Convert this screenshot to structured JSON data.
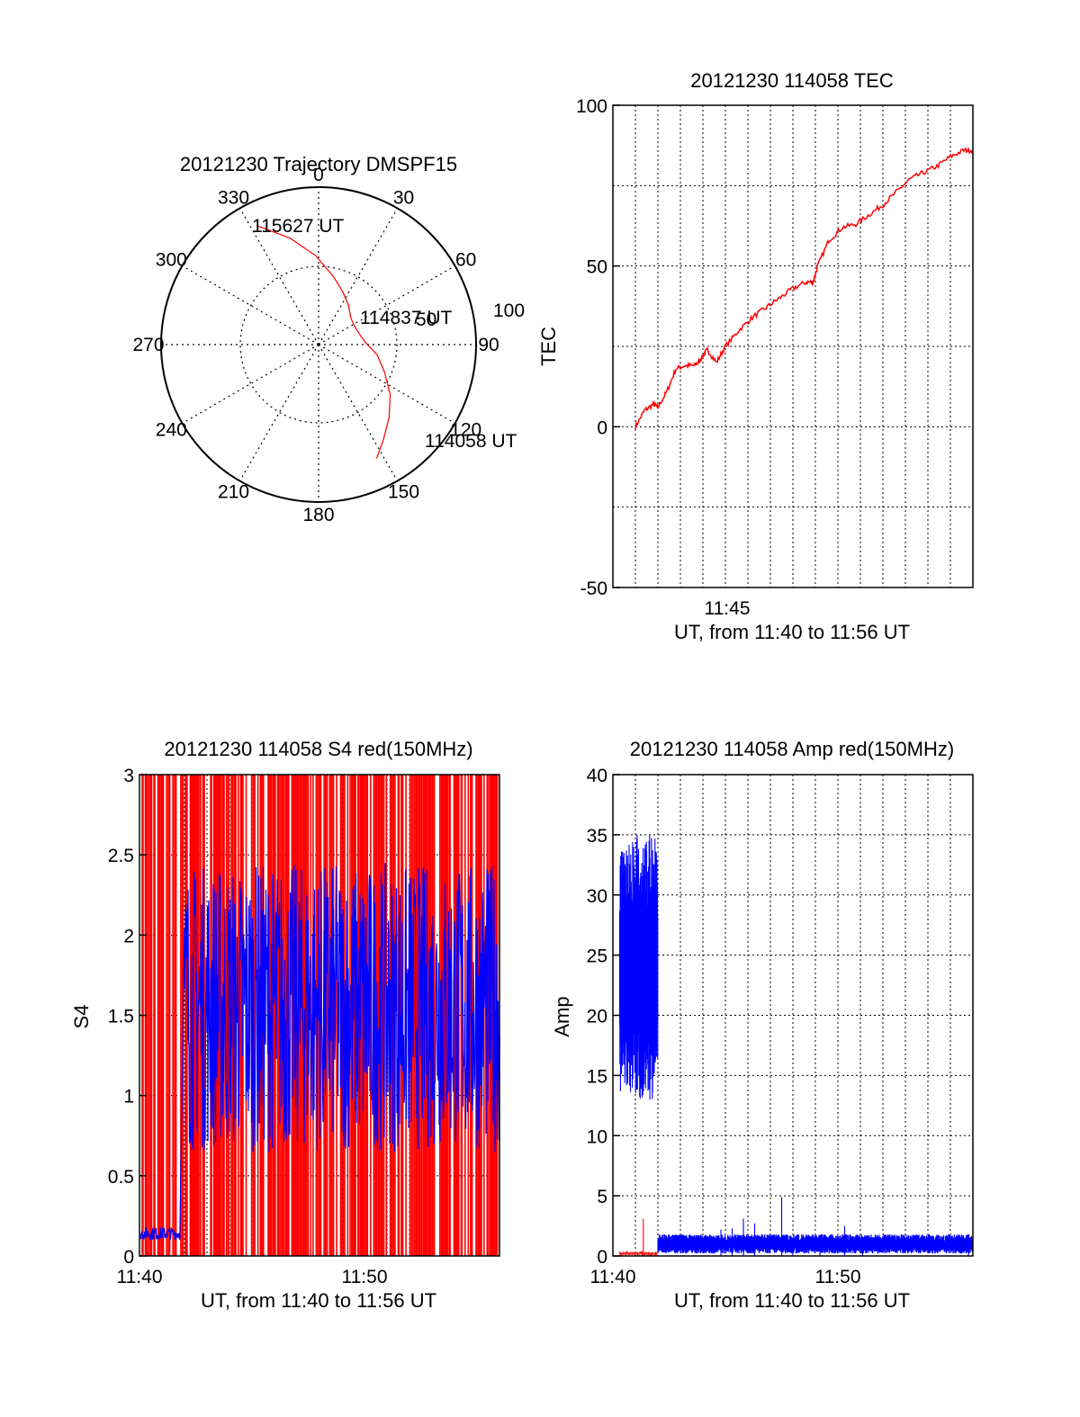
{
  "chart_data": [
    {
      "id": "trajectory",
      "type": "scatter",
      "title": "20121230 Trajectory DMSPF15",
      "azimuth_labels": [
        "0",
        "30",
        "60",
        "90",
        "120",
        "150",
        "180",
        "210",
        "240",
        "270",
        "300",
        "330"
      ],
      "elevation_labels": [
        "50",
        "100"
      ],
      "path_azimuth_deg": [
        333,
        345,
        358,
        12,
        25,
        38,
        50,
        62,
        75,
        88,
        100,
        113,
        125,
        136,
        146,
        153
      ],
      "path_elevation_deg": [
        14,
        27,
        39,
        50,
        57,
        62,
        66,
        67,
        66,
        63,
        56,
        49,
        40,
        32,
        24,
        17
      ],
      "annotations": [
        "115627 UT",
        "114837 UT",
        "114058 UT"
      ],
      "color": "#ff0000"
    },
    {
      "id": "tec",
      "type": "line",
      "title": "20121230 114058 TEC",
      "ylabel": "TEC",
      "xlabel": "UT, from 11:40 to 11:56 UT",
      "xlim": [
        0,
        16
      ],
      "ylim": [
        -50,
        100
      ],
      "yticks": [
        "-50",
        "0",
        "50",
        "100"
      ],
      "xticks": [
        "11:45"
      ],
      "x_minutes": [
        1.0,
        1.4,
        1.8,
        2.0,
        2.4,
        2.8,
        3.2,
        3.6,
        3.8,
        4.0,
        4.2,
        4.6,
        5.0,
        5.6,
        6.2,
        6.8,
        7.4,
        8.0,
        8.6,
        8.9,
        9.1,
        9.6,
        10.2,
        10.8,
        11.4,
        12.0,
        12.6,
        13.2,
        13.8,
        14.4,
        15.0,
        15.6,
        16.0
      ],
      "values": [
        0,
        5,
        7,
        6,
        11,
        18,
        19,
        19,
        20,
        22,
        24,
        20,
        25,
        30,
        34,
        37,
        40,
        43,
        45,
        45,
        50,
        58,
        62,
        63,
        66,
        69,
        73,
        77,
        79,
        81,
        84,
        86,
        86
      ],
      "color": "#ff0000"
    },
    {
      "id": "s4",
      "type": "line",
      "title": "20121230 114058 S4 red(150MHz)",
      "ylabel": "S4",
      "xlabel": "UT, from 11:40 to 11:56 UT",
      "xlim": [
        0,
        16
      ],
      "ylim": [
        0,
        3
      ],
      "yticks": [
        "0",
        "0.5",
        "1",
        "1.5",
        "2",
        "2.5",
        "3"
      ],
      "xticks": [
        "11:40",
        "11:50"
      ],
      "series": [
        {
          "color": "#ff0000",
          "x_range": [
            0.0,
            16.0
          ],
          "min": 0,
          "max": 3
        },
        {
          "color": "#0000ff",
          "segments": [
            {
              "x_range": [
                0.05,
                1.8
              ],
              "mean": 0.14,
              "spread": 0.04
            },
            {
              "x_range": [
                2.0,
                16.0
              ],
              "mean": 1.55,
              "spread": 0.9
            }
          ]
        }
      ]
    },
    {
      "id": "amp",
      "type": "line",
      "title": "20121230 114058 Amp red(150MHz)",
      "ylabel": "Amp",
      "xlabel": "UT, from 11:40 to 11:56 UT",
      "xlim": [
        0,
        16
      ],
      "ylim": [
        0,
        40
      ],
      "yticks": [
        "0",
        "5",
        "10",
        "15",
        "20",
        "25",
        "30",
        "35",
        "40"
      ],
      "xticks": [
        "11:40",
        "11:50"
      ],
      "series": [
        {
          "color": "#0000ff",
          "segments": [
            {
              "x_range": [
                0.3,
                2.0
              ],
              "low": 13,
              "high": 35
            },
            {
              "x_range": [
                2.0,
                16.0
              ],
              "low": 0.2,
              "high": 1.8
            }
          ],
          "spikes": [
            [
              4.8,
              2.2
            ],
            [
              5.3,
              2.3
            ],
            [
              5.8,
              3.1
            ],
            [
              6.3,
              2.7
            ],
            [
              7.5,
              4.9
            ],
            [
              8.0,
              1.5
            ],
            [
              9.2,
              1.2
            ],
            [
              10.3,
              2.5
            ],
            [
              11.1,
              1.6
            ],
            [
              15.8,
              1.8
            ]
          ]
        },
        {
          "color": "#ff0000",
          "segments": [
            {
              "x_range": [
                0.3,
                2.0
              ],
              "low": 0,
              "high": 0.4
            }
          ],
          "spikes": [
            [
              1.35,
              3.1
            ]
          ]
        }
      ]
    }
  ]
}
